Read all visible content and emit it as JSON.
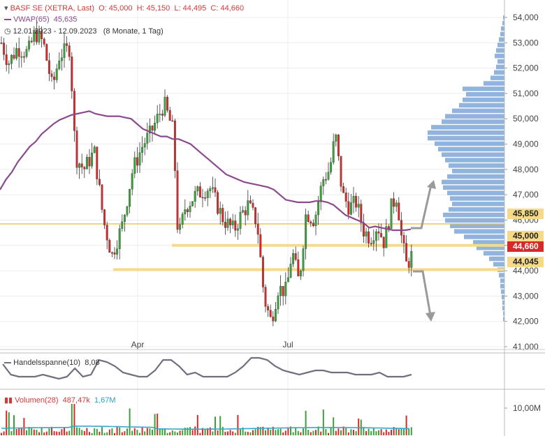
{
  "header": {
    "title": "BASF SE (XETRA, Last)",
    "open": "O: 45,000",
    "high": "H: 45,150",
    "low": "L: 44,495",
    "close": "C: 44,660",
    "vwap_label": "VWAP(65)",
    "vwap_value": "45,635",
    "date_range": "12.01.2023 - 12.09.2023",
    "period": "(8 Monate, 1 Tag)"
  },
  "indicators": {
    "range_label": "Handelsspanne(10)",
    "range_value": "8,08",
    "volume_label": "Volumen(28)",
    "volume_value": "487,47k",
    "volume_avg": "1,67M"
  },
  "colors": {
    "up": "#3aa03a",
    "down": "#d42a2a",
    "vwap": "#8b4a8b",
    "band": "#f7d98a",
    "profile": "#7fa6d6",
    "range": "#6f6f80",
    "volume_avg": "#3aa6c8"
  },
  "chart_data": {
    "type": "candlestick",
    "title": "BASF SE (XETRA, Last)",
    "xlabel": "",
    "ylabel": "",
    "x_ticks": [
      "Apr",
      "Jul"
    ],
    "y_ticks": [
      "54,000",
      "53,000",
      "52,000",
      "51,000",
      "50,000",
      "49,000",
      "48,000",
      "47,000",
      "46,000",
      "45,000",
      "44,000",
      "43,000",
      "42,000",
      "41,000"
    ],
    "ylim": [
      41.0,
      54.0
    ],
    "price_labels": [
      "45,850",
      "45,000",
      "44,660",
      "44,045"
    ],
    "levels": [
      45.85,
      45.0,
      44.045
    ],
    "last_price": 44.66,
    "vwap_series": [
      47.2,
      47.6,
      47.9,
      48.3,
      48.6,
      48.9,
      49.1,
      49.4,
      49.6,
      49.8,
      49.95,
      50.05,
      50.15,
      50.2,
      50.25,
      50.3,
      50.2,
      50.15,
      50.1,
      50.1,
      50.1,
      50.05,
      50.0,
      49.8,
      49.6,
      49.5,
      49.4,
      49.3,
      49.3,
      49.2,
      49.2,
      49.1,
      49.0,
      48.8,
      48.6,
      48.4,
      48.2,
      48.0,
      47.8,
      47.7,
      47.6,
      47.5,
      47.45,
      47.4,
      47.35,
      47.3,
      47.2,
      47.0,
      46.8,
      46.75,
      46.7,
      46.7,
      46.7,
      46.75,
      46.75,
      46.7,
      46.6,
      46.4,
      46.2,
      46.1,
      46.0,
      45.9,
      45.7,
      45.75,
      45.7,
      45.65,
      45.6,
      45.6,
      45.6,
      45.635
    ],
    "volume_ylabel": "10,00M"
  }
}
